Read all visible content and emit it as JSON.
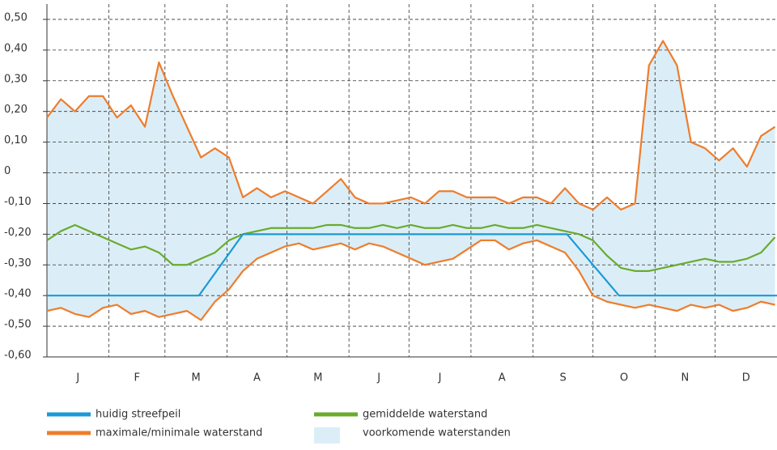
{
  "chart_data": {
    "type": "line",
    "xlim": [
      0,
      365
    ],
    "ylim": [
      -0.6,
      0.55
    ],
    "yticks": [
      {
        "value": 0.5,
        "label": "0,50"
      },
      {
        "value": 0.4,
        "label": "0,40"
      },
      {
        "value": 0.3,
        "label": "0,30"
      },
      {
        "value": 0.2,
        "label": "0,20"
      },
      {
        "value": 0.1,
        "label": "0,10"
      },
      0,
      {
        "value": -0.1,
        "label": "-0,10"
      },
      {
        "value": -0.2,
        "label": "-0,20"
      },
      {
        "value": -0.3,
        "label": "-0,30"
      },
      {
        "value": -0.4,
        "label": "-0,40"
      },
      {
        "value": -0.5,
        "label": "-0,50"
      },
      {
        "value": -0.6,
        "label": "-0,60"
      }
    ],
    "xticks": [
      {
        "value": 15.5,
        "label": "J"
      },
      {
        "value": 45,
        "label": "F"
      },
      {
        "value": 74.5,
        "label": "M"
      },
      {
        "value": 105,
        "label": "A"
      },
      {
        "value": 135.5,
        "label": "M"
      },
      {
        "value": 166,
        "label": "J"
      },
      {
        "value": 196.5,
        "label": "J"
      },
      {
        "value": 227.5,
        "label": "A"
      },
      {
        "value": 258,
        "label": "S"
      },
      {
        "value": 288.5,
        "label": "O"
      },
      {
        "value": 319,
        "label": "N"
      },
      {
        "value": 349.5,
        "label": "D"
      }
    ],
    "x_gridlines": [
      31,
      59,
      90,
      120,
      151,
      181,
      212,
      243,
      273,
      304,
      334
    ],
    "grid": true,
    "x": [
      0,
      7,
      14,
      21,
      28,
      35,
      42,
      49,
      56,
      63,
      70,
      77,
      84,
      91,
      98,
      105,
      112,
      119,
      126,
      133,
      140,
      147,
      154,
      161,
      168,
      175,
      182,
      189,
      196,
      203,
      210,
      217,
      224,
      231,
      238,
      245,
      252,
      259,
      266,
      273,
      280,
      287,
      294,
      301,
      308,
      315,
      322,
      329,
      336,
      343,
      350,
      357,
      364
    ],
    "series": [
      {
        "name": "huidig streefpeil",
        "color": "#1a9ad6",
        "x": [
          0,
          76,
          98,
          260,
          286,
          365
        ],
        "values": [
          -0.4,
          -0.4,
          -0.2,
          -0.2,
          -0.4,
          -0.4
        ]
      },
      {
        "name": "gemiddelde waterstand",
        "color": "#6aab2e",
        "values": [
          -0.22,
          -0.19,
          -0.17,
          -0.19,
          -0.21,
          -0.23,
          -0.25,
          -0.24,
          -0.26,
          -0.3,
          -0.3,
          -0.28,
          -0.26,
          -0.22,
          -0.2,
          -0.19,
          -0.18,
          -0.18,
          -0.18,
          -0.18,
          -0.17,
          -0.17,
          -0.18,
          -0.18,
          -0.17,
          -0.18,
          -0.17,
          -0.18,
          -0.18,
          -0.17,
          -0.18,
          -0.18,
          -0.17,
          -0.18,
          -0.18,
          -0.17,
          -0.18,
          -0.19,
          -0.2,
          -0.22,
          -0.27,
          -0.31,
          -0.32,
          -0.32,
          -0.31,
          -0.3,
          -0.29,
          -0.28,
          -0.29,
          -0.29,
          -0.28,
          -0.26,
          -0.21
        ]
      },
      {
        "name": "maximale/minimale waterstand",
        "color": "#ee7d2c",
        "values": [
          0.18,
          0.24,
          0.2,
          0.25,
          0.25,
          0.18,
          0.22,
          0.15,
          0.36,
          0.25,
          0.15,
          0.05,
          0.08,
          0.05,
          -0.08,
          -0.05,
          -0.08,
          -0.06,
          -0.08,
          -0.1,
          -0.06,
          -0.02,
          -0.08,
          -0.1,
          -0.1,
          -0.09,
          -0.08,
          -0.1,
          -0.06,
          -0.06,
          -0.08,
          -0.08,
          -0.08,
          -0.1,
          -0.08,
          -0.08,
          -0.1,
          -0.05,
          -0.1,
          -0.12,
          -0.08,
          -0.12,
          -0.1,
          0.35,
          0.43,
          0.35,
          0.1,
          0.08,
          0.04,
          0.08,
          0.02,
          0.12,
          0.15
        ],
        "values_low": [
          -0.45,
          -0.44,
          -0.46,
          -0.47,
          -0.44,
          -0.43,
          -0.46,
          -0.45,
          -0.47,
          -0.46,
          -0.45,
          -0.48,
          -0.42,
          -0.38,
          -0.32,
          -0.28,
          -0.26,
          -0.24,
          -0.23,
          -0.25,
          -0.24,
          -0.23,
          -0.25,
          -0.23,
          -0.24,
          -0.26,
          -0.28,
          -0.3,
          -0.29,
          -0.28,
          -0.25,
          -0.22,
          -0.22,
          -0.25,
          -0.23,
          -0.22,
          -0.24,
          -0.26,
          -0.32,
          -0.4,
          -0.42,
          -0.43,
          -0.44,
          -0.43,
          -0.44,
          -0.45,
          -0.43,
          -0.44,
          -0.43,
          -0.45,
          -0.44,
          -0.42,
          -0.43
        ]
      },
      {
        "name": "voorkomende waterstanden",
        "color": "#dbeef7"
      }
    ]
  }
}
